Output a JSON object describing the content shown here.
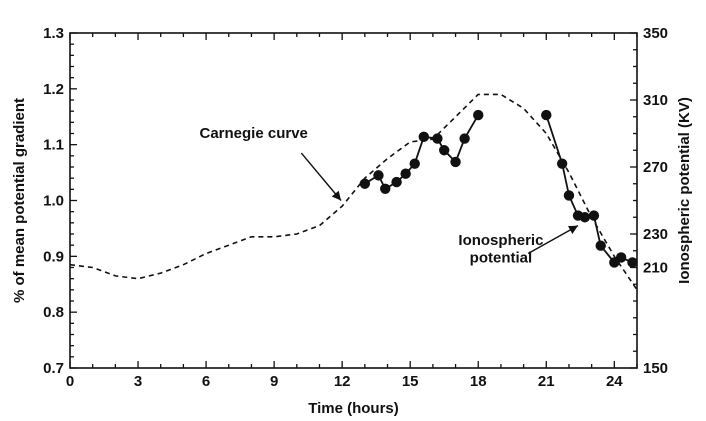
{
  "chart_data": {
    "type": "line",
    "title": "",
    "xlabel": "Time (hours)",
    "ylabel": "% of mean potential gradient",
    "ylabel_right": "Ionospheric potential (KV)",
    "xlim": [
      0,
      25
    ],
    "ylim": [
      0.7,
      1.3
    ],
    "ylim_right": [
      150,
      350
    ],
    "x_ticks": [
      "0",
      "3",
      "6",
      "9",
      "12",
      "15",
      "18",
      "21",
      "24"
    ],
    "y_ticks": [
      "0.7",
      "0.8",
      "0.9",
      "1.0",
      "1.1",
      "1.2",
      "1.3"
    ],
    "y_ticks_right": [
      "150",
      "210",
      "230",
      "270",
      "310",
      "350"
    ],
    "grid": false,
    "series": [
      {
        "name": "Carnegie curve",
        "axis": "left",
        "style": "dashed",
        "x": [
          0,
          1,
          2,
          3,
          4,
          5,
          6,
          7,
          8,
          9,
          10,
          11,
          12,
          13,
          14,
          15,
          16,
          17,
          18,
          19,
          20,
          21,
          22,
          23,
          24,
          25
        ],
        "y": [
          0.885,
          0.88,
          0.865,
          0.86,
          0.87,
          0.885,
          0.905,
          0.92,
          0.935,
          0.935,
          0.94,
          0.955,
          0.99,
          1.04,
          1.075,
          1.105,
          1.11,
          1.15,
          1.19,
          1.19,
          1.165,
          1.12,
          1.05,
          0.97,
          0.9,
          0.84
        ]
      },
      {
        "name": "Ionospheric potential",
        "axis": "right",
        "style": "solid-markers",
        "x": [
          13.0,
          13.6,
          13.9,
          14.4,
          14.8,
          15.2,
          15.6,
          16.2,
          16.5,
          17.0,
          17.4,
          18.0,
          21.0,
          21.7,
          22.0,
          22.4,
          22.7,
          23.1,
          23.4,
          24.0,
          24.3,
          24.8
        ],
        "y": [
          260,
          265,
          257,
          261,
          266,
          272,
          288,
          287,
          280,
          273,
          287,
          301,
          301,
          272,
          253,
          241,
          240,
          241,
          223,
          213,
          216,
          213
        ]
      }
    ],
    "annotations": [
      {
        "text": "Carnegie curve",
        "points_to": "Carnegie curve"
      },
      {
        "text": "Ionospheric\npotential",
        "points_to": "Ionospheric potential"
      }
    ]
  }
}
